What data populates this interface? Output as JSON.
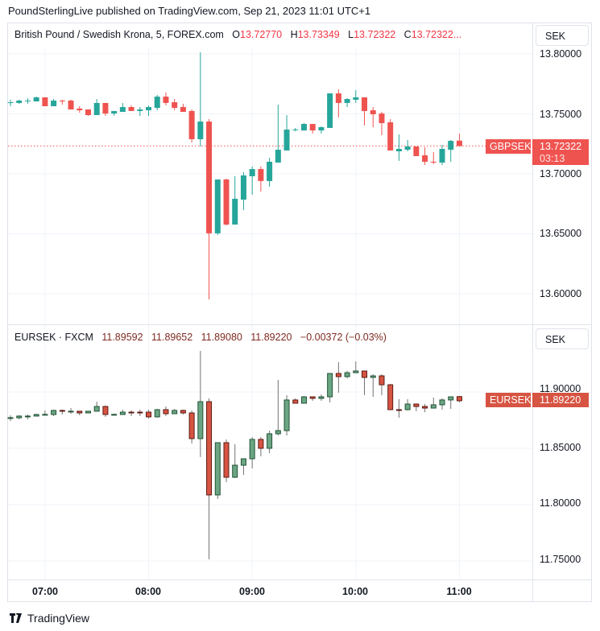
{
  "published": "PoundSterlingLive published on TradingView.com, Sep 21, 2023 11:01 UTC+1",
  "top_pane": {
    "title": "British Pound / Swedish Krona, 5, FOREX.com",
    "o_label": "O",
    "o": "13.72770",
    "h_label": "H",
    "h": "13.73349",
    "l_label": "L",
    "l": "13.72322",
    "c_label": "C",
    "c": "13.72322...",
    "currency_button": "SEK",
    "symbol_tag": "GBPSEK",
    "last_price": "13.72322",
    "countdown": "03:13",
    "yticks": [
      "13.80000",
      "13.75000",
      "13.70000",
      "13.65000",
      "13.60000"
    ]
  },
  "bottom_pane": {
    "title": "EURSEK · FXCM",
    "o": "11.89592",
    "h": "11.89652",
    "l": "11.89080",
    "c": "11.89220",
    "change": "−0.00372 (−0.03%)",
    "currency_button": "SEK",
    "symbol_tag": "EURSEK",
    "last_price": "11.89220",
    "yticks": [
      "11.90000",
      "11.85000",
      "11.80000",
      "11.75000"
    ]
  },
  "xticks": [
    "07:00",
    "08:00",
    "09:00",
    "10:00",
    "11:00"
  ],
  "footer": {
    "brand": "TradingView"
  },
  "colors": {
    "up_top": "#26a69a",
    "down_top": "#ef5350",
    "up_bot": "#6ba583",
    "up_bot_border": "#225437",
    "down_bot": "#d75442",
    "down_bot_border": "#5b1a13",
    "wick_bot": "#737375",
    "grid": "#f0f3fa"
  },
  "chart_data": [
    {
      "type": "candlestick",
      "symbol": "GBPSEK",
      "ylim": [
        13.58,
        13.81
      ],
      "yticks": [
        13.6,
        13.65,
        13.7,
        13.75,
        13.8
      ],
      "xticks": [
        "07:00",
        "08:00",
        "09:00",
        "10:00",
        "11:00"
      ],
      "last": 13.72322,
      "candles": [
        [
          "06:40",
          13.7597,
          13.7618,
          13.7564,
          13.7597
        ],
        [
          "06:45",
          13.7591,
          13.7618,
          13.7584,
          13.7611
        ],
        [
          "06:50",
          13.7611,
          13.7631,
          13.7584,
          13.7611
        ],
        [
          "06:55",
          13.7604,
          13.7644,
          13.7604,
          13.7638
        ],
        [
          "07:00",
          13.7638,
          13.7638,
          13.7564,
          13.7564
        ],
        [
          "07:05",
          13.7564,
          13.7624,
          13.7564,
          13.7611
        ],
        [
          "07:10",
          13.7611,
          13.7618,
          13.7577,
          13.761
        ],
        [
          "07:15",
          13.7611,
          13.7618,
          13.7537,
          13.7537
        ],
        [
          "07:20",
          13.7544,
          13.7564,
          13.751,
          13.753
        ],
        [
          "07:25",
          13.7537,
          13.7537,
          13.7483,
          13.749
        ],
        [
          "07:30",
          13.749,
          13.7624,
          13.749,
          13.7591
        ],
        [
          "07:35",
          13.7591,
          13.7591,
          13.7483,
          13.7503
        ],
        [
          "07:40",
          13.7503,
          13.7524,
          13.7483,
          13.7524
        ],
        [
          "07:45",
          13.7517,
          13.7591,
          13.7517,
          13.7557
        ],
        [
          "07:50",
          13.7557,
          13.7571,
          13.7524,
          13.7524
        ],
        [
          "07:55",
          13.7524,
          13.7557,
          13.7483,
          13.7537
        ],
        [
          "08:00",
          13.753,
          13.7571,
          13.7483,
          13.7557
        ],
        [
          "08:05",
          13.755,
          13.7658,
          13.753,
          13.7644
        ],
        [
          "08:10",
          13.7644,
          13.7678,
          13.7571,
          13.7591
        ],
        [
          "08:15",
          13.7597,
          13.7624,
          13.753,
          13.755
        ],
        [
          "08:20",
          13.7557,
          13.7584,
          13.7517,
          13.7517
        ],
        [
          "08:25",
          13.7524,
          13.7537,
          13.7262,
          13.7289
        ],
        [
          "08:30",
          13.7289,
          13.8013,
          13.7228,
          13.7436
        ],
        [
          "08:35",
          13.7436,
          13.7456,
          13.5953,
          13.6504
        ],
        [
          "08:40",
          13.6504,
          13.6953,
          13.649,
          13.6953
        ],
        [
          "08:45",
          13.6953,
          13.696,
          13.657,
          13.6577
        ],
        [
          "08:50",
          13.6577,
          13.698,
          13.6577,
          13.6792
        ],
        [
          "08:55",
          13.6785,
          13.7014,
          13.6698,
          13.6987
        ],
        [
          "09:00",
          13.698,
          13.7061,
          13.6826,
          13.704
        ],
        [
          "09:05",
          13.704,
          13.7061,
          13.6853,
          13.694
        ],
        [
          "09:10",
          13.694,
          13.7134,
          13.6893,
          13.7101
        ],
        [
          "09:15",
          13.7094,
          13.7577,
          13.7094,
          13.7201
        ],
        [
          "09:20",
          13.7195,
          13.749,
          13.7195,
          13.7369
        ],
        [
          "09:25",
          13.7369,
          13.7383,
          13.7355,
          13.737
        ],
        [
          "09:30",
          13.7362,
          13.7423,
          13.7362,
          13.7416
        ],
        [
          "09:35",
          13.7416,
          13.7416,
          13.7336,
          13.7362
        ],
        [
          "09:40",
          13.7362,
          13.7396,
          13.7336,
          13.7389
        ],
        [
          "09:45",
          13.7383,
          13.7671,
          13.7383,
          13.7671
        ],
        [
          "09:50",
          13.7671,
          13.7705,
          13.747,
          13.7591
        ],
        [
          "09:55",
          13.7591,
          13.7631,
          13.7557,
          13.7624
        ],
        [
          "10:00",
          13.7618,
          13.7698,
          13.7591,
          13.7638
        ],
        [
          "10:05",
          13.7638,
          13.7638,
          13.7403,
          13.7524
        ],
        [
          "10:10",
          13.753,
          13.7557,
          13.7389,
          13.7497
        ],
        [
          "10:15",
          13.7503,
          13.7517,
          13.7322,
          13.7423
        ],
        [
          "10:20",
          13.743,
          13.7456,
          13.7195,
          13.7195
        ],
        [
          "10:25",
          13.7188,
          13.7329,
          13.7108,
          13.7208
        ],
        [
          "10:30",
          13.7201,
          13.7282,
          13.7188,
          13.7228
        ],
        [
          "10:35",
          13.7228,
          13.7228,
          13.7148,
          13.7148
        ],
        [
          "10:40",
          13.7155,
          13.7222,
          13.7074,
          13.7101
        ],
        [
          "10:45",
          13.7101,
          13.7181,
          13.7081,
          13.7094
        ],
        [
          "10:50",
          13.7094,
          13.7242,
          13.7074,
          13.7208
        ],
        [
          "10:55",
          13.7201,
          13.7282,
          13.7101,
          13.7275
        ],
        [
          "11:00",
          13.7277,
          13.7335,
          13.7232,
          13.7232
        ]
      ]
    },
    {
      "type": "candlestick",
      "symbol": "EURSEK",
      "ylim": [
        11.735,
        11.94
      ],
      "yticks": [
        11.75,
        11.8,
        11.85,
        11.9
      ],
      "xticks": [
        "07:00",
        "08:00",
        "09:00",
        "10:00",
        "11:00"
      ],
      "last": 11.8922,
      "candles": [
        [
          "06:40",
          11.8771,
          11.8793,
          11.8743,
          11.8772
        ],
        [
          "06:45",
          11.8771,
          11.8793,
          11.8757,
          11.8786
        ],
        [
          "06:50",
          11.8786,
          11.88,
          11.8757,
          11.8786
        ],
        [
          "06:55",
          11.8786,
          11.8807,
          11.8786,
          11.88
        ],
        [
          "07:00",
          11.88,
          11.8836,
          11.88,
          11.8801
        ],
        [
          "07:05",
          11.88,
          11.8843,
          11.8786,
          11.8836
        ],
        [
          "07:10",
          11.8836,
          11.8843,
          11.88,
          11.8829
        ],
        [
          "07:15",
          11.8829,
          11.8857,
          11.8807,
          11.8829
        ],
        [
          "07:20",
          11.8829,
          11.8829,
          11.8793,
          11.8814
        ],
        [
          "07:25",
          11.8814,
          11.8829,
          11.8814,
          11.8829
        ],
        [
          "07:30",
          11.8829,
          11.8914,
          11.8829,
          11.8871
        ],
        [
          "07:35",
          11.8871,
          11.8879,
          11.8779,
          11.88
        ],
        [
          "07:40",
          11.88,
          11.8807,
          11.88,
          11.8801
        ],
        [
          "07:45",
          11.88,
          11.8843,
          11.88,
          11.8821
        ],
        [
          "07:50",
          11.8821,
          11.8836,
          11.8786,
          11.882
        ],
        [
          "07:55",
          11.8821,
          11.8843,
          11.8786,
          11.882
        ],
        [
          "08:00",
          11.8821,
          11.8843,
          11.8764,
          11.8779
        ],
        [
          "08:05",
          11.8779,
          11.885,
          11.8771,
          11.8843
        ],
        [
          "08:10",
          11.8843,
          11.8871,
          11.8786,
          11.8807
        ],
        [
          "08:15",
          11.8807,
          11.885,
          11.8807,
          11.8836
        ],
        [
          "08:20",
          11.8836,
          11.8843,
          11.88,
          11.8814
        ],
        [
          "08:25",
          11.8814,
          11.8836,
          11.8543,
          11.8586
        ],
        [
          "08:30",
          11.8586,
          11.9364,
          11.8422,
          11.8914
        ],
        [
          "08:35",
          11.8914,
          11.8943,
          11.7515,
          11.8086
        ],
        [
          "08:40",
          11.8086,
          11.855,
          11.805,
          11.855
        ],
        [
          "08:45",
          11.855,
          11.8579,
          11.82,
          11.8243
        ],
        [
          "08:50",
          11.8243,
          11.8536,
          11.8236,
          11.835
        ],
        [
          "08:55",
          11.835,
          11.8407,
          11.8264,
          11.8407
        ],
        [
          "09:00",
          11.8407,
          11.86,
          11.8321,
          11.8579
        ],
        [
          "09:05",
          11.8579,
          11.86,
          11.8429,
          11.85
        ],
        [
          "09:10",
          11.85,
          11.8657,
          11.8457,
          11.8629
        ],
        [
          "09:15",
          11.8629,
          11.9107,
          11.8614,
          11.8657
        ],
        [
          "09:20",
          11.8657,
          11.8971,
          11.8614,
          11.8929
        ],
        [
          "09:25",
          11.8929,
          11.8943,
          11.89,
          11.89
        ],
        [
          "09:30",
          11.89,
          11.8964,
          11.89,
          11.8957
        ],
        [
          "09:35",
          11.8957,
          11.8957,
          11.8921,
          11.8943
        ],
        [
          "09:40",
          11.8943,
          11.8979,
          11.8921,
          11.8957
        ],
        [
          "09:45",
          11.8957,
          11.9164,
          11.8907,
          11.9164
        ],
        [
          "09:50",
          11.9164,
          11.9264,
          11.8993,
          11.9136
        ],
        [
          "09:55",
          11.9136,
          11.9186,
          11.9121,
          11.9171
        ],
        [
          "10:00",
          11.9171,
          11.9271,
          11.9171,
          11.9186
        ],
        [
          "10:05",
          11.9186,
          11.9186,
          11.8971,
          11.9129
        ],
        [
          "10:10",
          11.9129,
          11.9157,
          11.8957,
          11.9143
        ],
        [
          "10:15",
          11.9143,
          11.9157,
          11.8971,
          11.9064
        ],
        [
          "10:20",
          11.9064,
          11.9071,
          11.8843,
          11.8843
        ],
        [
          "10:25",
          11.8843,
          11.8936,
          11.8771,
          11.8842
        ],
        [
          "10:30",
          11.8843,
          11.8936,
          11.8836,
          11.8893
        ],
        [
          "10:35",
          11.8893,
          11.8893,
          11.8829,
          11.8871
        ],
        [
          "10:40",
          11.8871,
          11.8893,
          11.8821,
          11.8857
        ],
        [
          "10:45",
          11.8857,
          11.895,
          11.8857,
          11.8886
        ],
        [
          "10:50",
          11.8886,
          11.8943,
          11.8843,
          11.8929
        ],
        [
          "10:55",
          11.8929,
          11.8957,
          11.885,
          11.8957
        ],
        [
          "11:00",
          11.8959,
          11.8965,
          11.8908,
          11.8922
        ]
      ]
    }
  ]
}
